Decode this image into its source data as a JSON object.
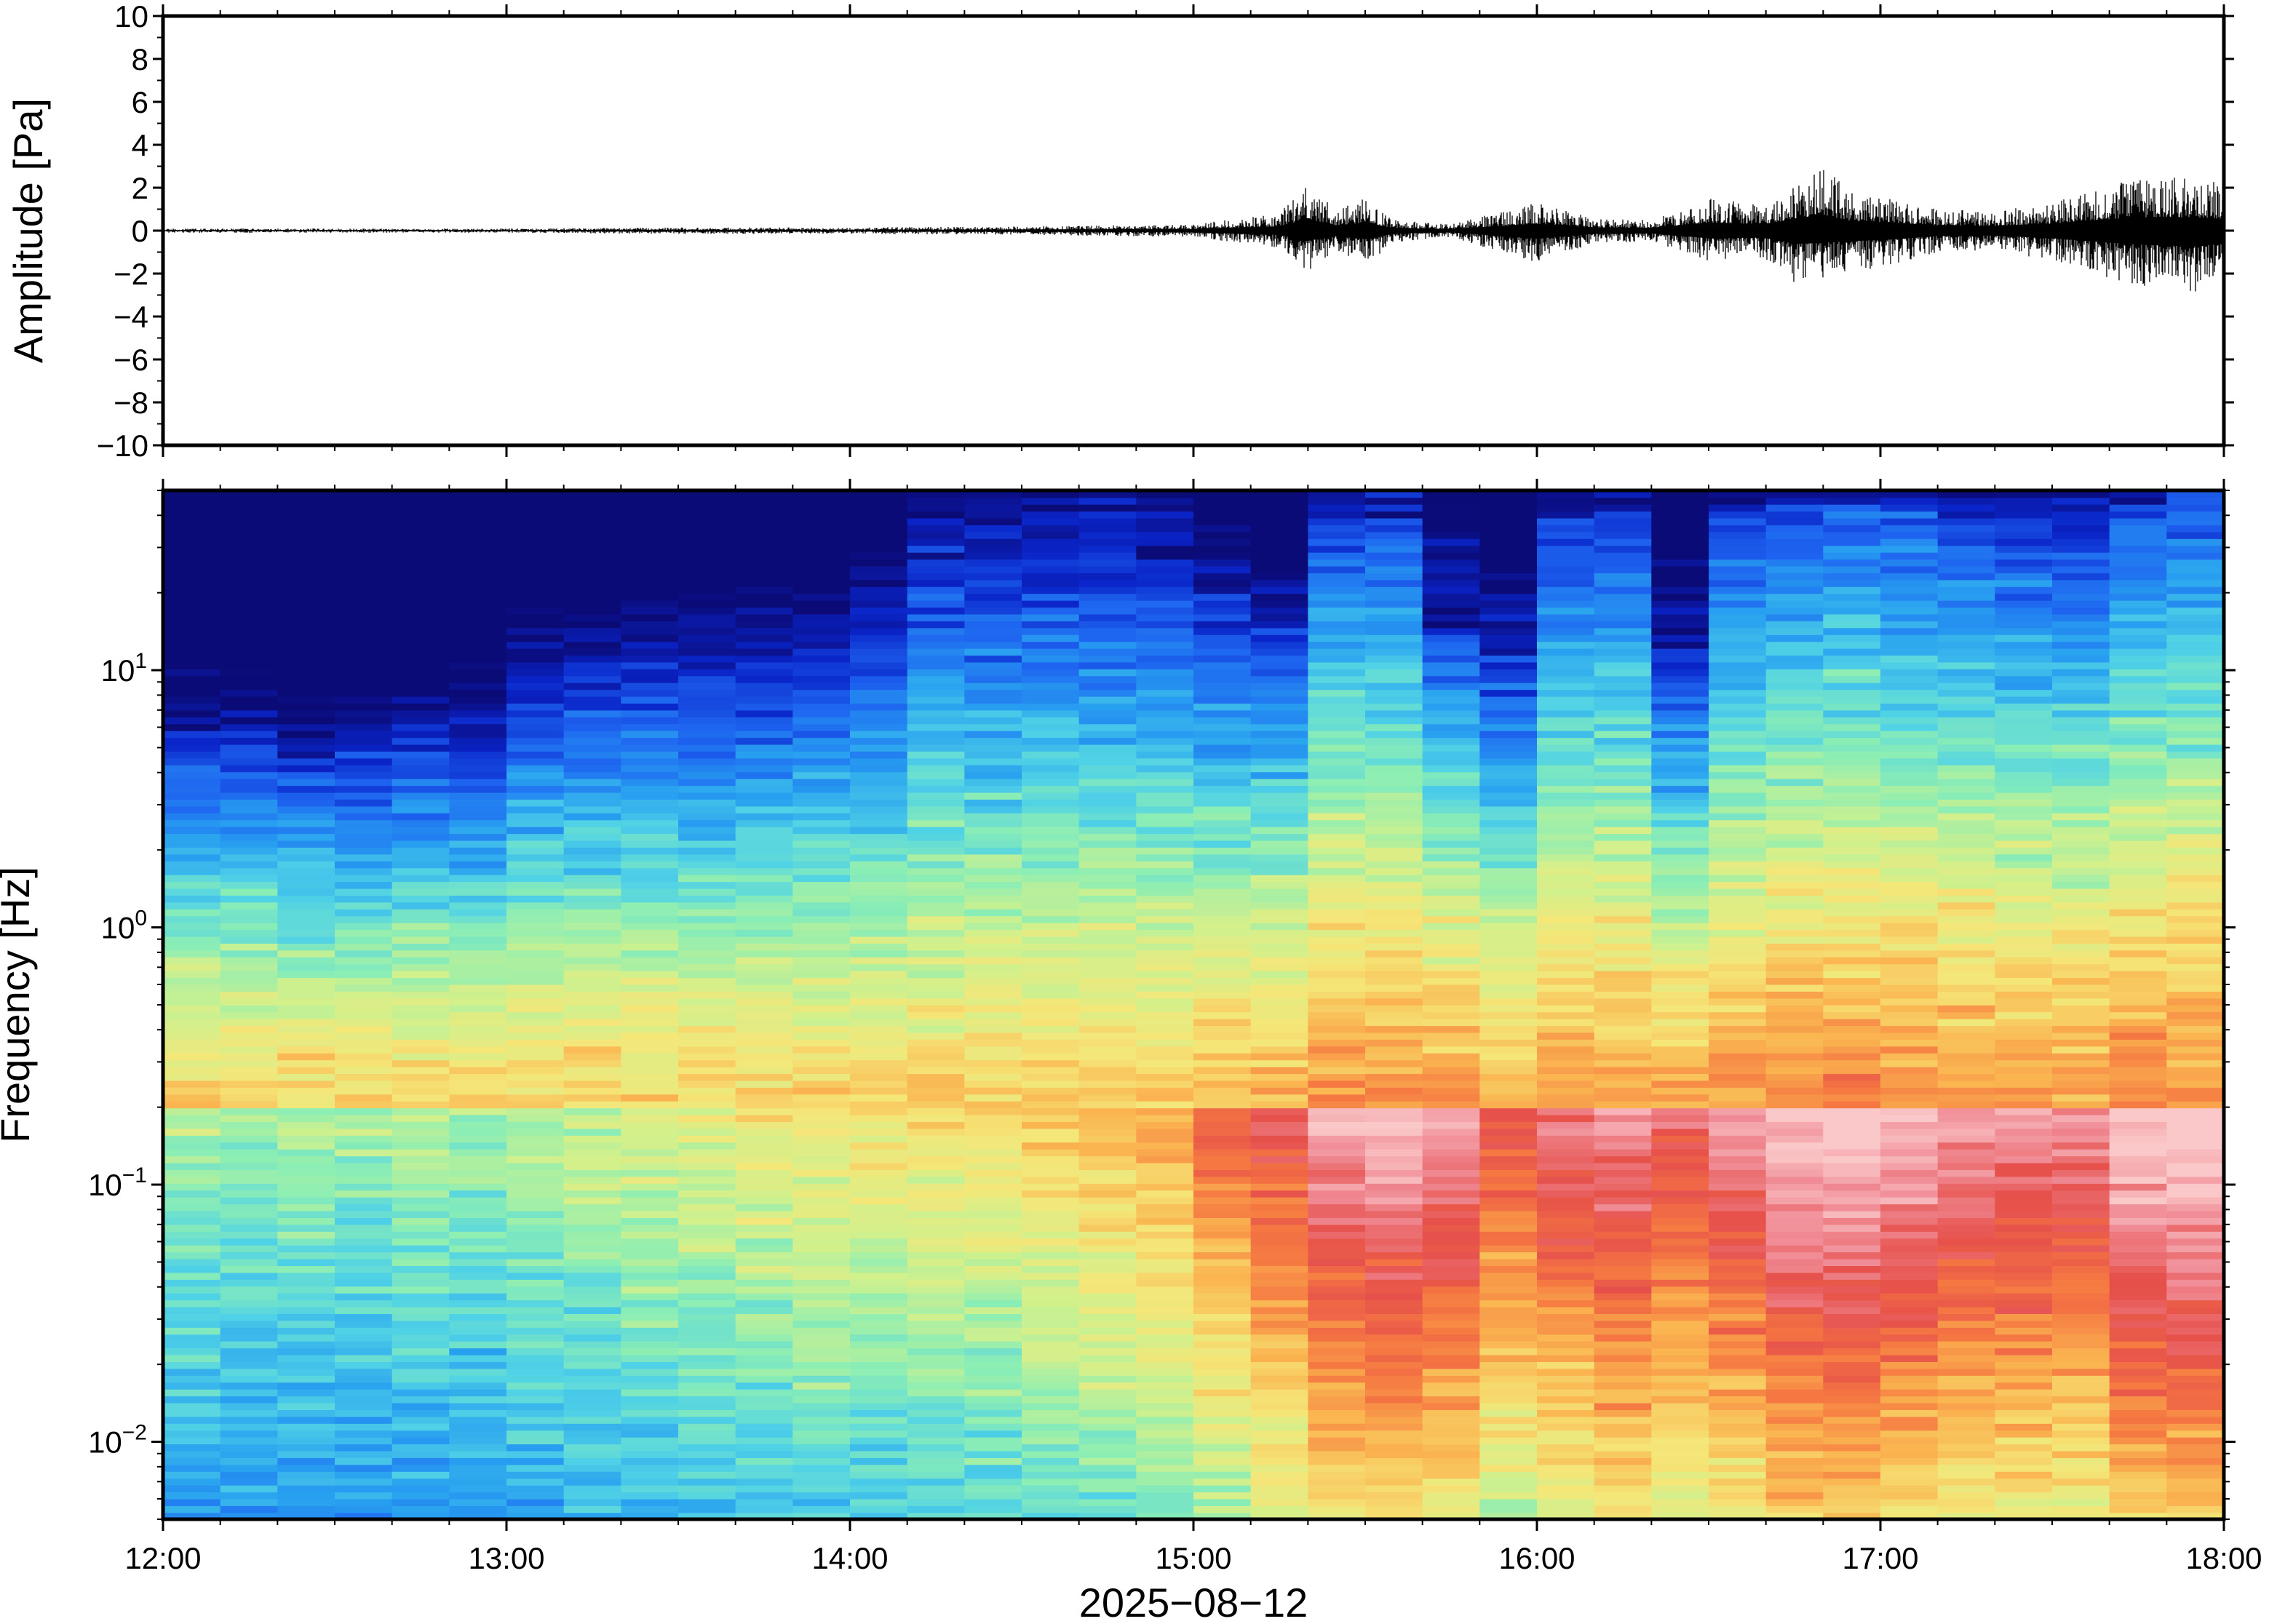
{
  "chart_data": [
    {
      "type": "line",
      "panel": "waveform",
      "ylabel": "Amplitude [Pa]",
      "xlabel": "",
      "xlim": [
        "12:00",
        "18:00"
      ],
      "ylim": [
        -10,
        10
      ],
      "y_ticks": [
        10,
        8,
        6,
        4,
        2,
        0,
        -2,
        -4,
        -6,
        -8,
        -10
      ],
      "y_tick_labels": [
        "10",
        "8",
        "6",
        "4",
        "2",
        "0",
        "−2",
        "−4",
        "−6",
        "−8",
        "−10"
      ],
      "grid": false,
      "series": [
        {
          "color": "#000000",
          "envelope": {
            "x": [
              "12:00",
              "12:30",
              "13:00",
              "13:30",
              "14:00",
              "14:30",
              "15:00",
              "15:15",
              "15:20",
              "15:25",
              "15:30",
              "15:35",
              "15:40",
              "15:45",
              "16:00",
              "16:10",
              "16:20",
              "16:30",
              "16:40",
              "16:45",
              "16:50",
              "16:55",
              "17:00",
              "17:10",
              "17:20",
              "17:30",
              "17:35",
              "17:45",
              "17:55",
              "18:00"
            ],
            "max": [
              0.1,
              0.1,
              0.1,
              0.15,
              0.15,
              0.2,
              0.3,
              0.8,
              2.2,
              1.0,
              1.5,
              0.5,
              0.4,
              0.3,
              1.3,
              0.6,
              0.5,
              1.5,
              1.2,
              2.2,
              3.0,
              1.8,
              1.6,
              1.0,
              0.9,
              1.3,
              1.8,
              2.5,
              2.5,
              2.2
            ],
            "min": [
              -0.1,
              -0.1,
              -0.1,
              -0.15,
              -0.15,
              -0.2,
              -0.3,
              -0.8,
              -1.9,
              -1.0,
              -1.6,
              -0.6,
              -0.4,
              -0.3,
              -1.5,
              -0.6,
              -0.5,
              -1.4,
              -1.3,
              -2.4,
              -2.3,
              -1.8,
              -1.8,
              -1.0,
              -0.9,
              -1.4,
              -1.8,
              -2.6,
              -2.9,
              -2.5
            ]
          }
        }
      ]
    },
    {
      "type": "heatmap",
      "panel": "spectrogram",
      "ylabel": "Frequency [Hz]",
      "xlabel": "2025−08−12",
      "y_scale": "log",
      "ylim": [
        0.005,
        50
      ],
      "xlim": [
        "12:00",
        "18:00"
      ],
      "x_ticks": [
        "12:00",
        "13:00",
        "14:00",
        "15:00",
        "16:00",
        "17:00",
        "18:00"
      ],
      "y_ticks": [
        0.01,
        0.1,
        1,
        10
      ],
      "y_tick_labels": [
        {
          "base": "10",
          "exp": "−2"
        },
        {
          "base": "10",
          "exp": "−1"
        },
        {
          "base": "10",
          "exp": "0"
        },
        {
          "base": "10",
          "exp": "1"
        }
      ],
      "colormap": [
        "#0b0b78",
        "#0a24c8",
        "#1e64f0",
        "#28a0f0",
        "#50d2e6",
        "#8ceeb4",
        "#d2f08c",
        "#f5e678",
        "#fab450",
        "#f57842",
        "#e6504b",
        "#f08c96",
        "#fac8c8"
      ],
      "time_bins": [
        "12:00",
        "12:10",
        "12:20",
        "12:30",
        "12:40",
        "12:50",
        "13:00",
        "13:10",
        "13:20",
        "13:30",
        "13:40",
        "13:50",
        "14:00",
        "14:10",
        "14:20",
        "14:30",
        "14:40",
        "14:50",
        "15:00",
        "15:10",
        "15:20",
        "15:30",
        "15:40",
        "15:50",
        "16:00",
        "16:10",
        "16:20",
        "16:30",
        "16:40",
        "16:50",
        "17:00",
        "17:10",
        "17:20",
        "17:30",
        "17:40",
        "17:50"
      ],
      "noise_top_hz": [
        7,
        6.5,
        6,
        6,
        6.5,
        7,
        12,
        12,
        13,
        13,
        14,
        15,
        20,
        40,
        40,
        40,
        38,
        30,
        20,
        15,
        40,
        40,
        15,
        12,
        40,
        38,
        12,
        40,
        45,
        45,
        45,
        40,
        38,
        35,
        45,
        50
      ],
      "low_freq_intensity": [
        0.38,
        0.36,
        0.38,
        0.36,
        0.38,
        0.37,
        0.4,
        0.42,
        0.44,
        0.46,
        0.48,
        0.5,
        0.5,
        0.52,
        0.52,
        0.55,
        0.58,
        0.62,
        0.7,
        0.78,
        0.9,
        0.92,
        0.88,
        0.76,
        0.82,
        0.86,
        0.8,
        0.86,
        0.94,
        0.96,
        0.92,
        0.88,
        0.86,
        0.84,
        0.96,
        0.98
      ]
    }
  ]
}
